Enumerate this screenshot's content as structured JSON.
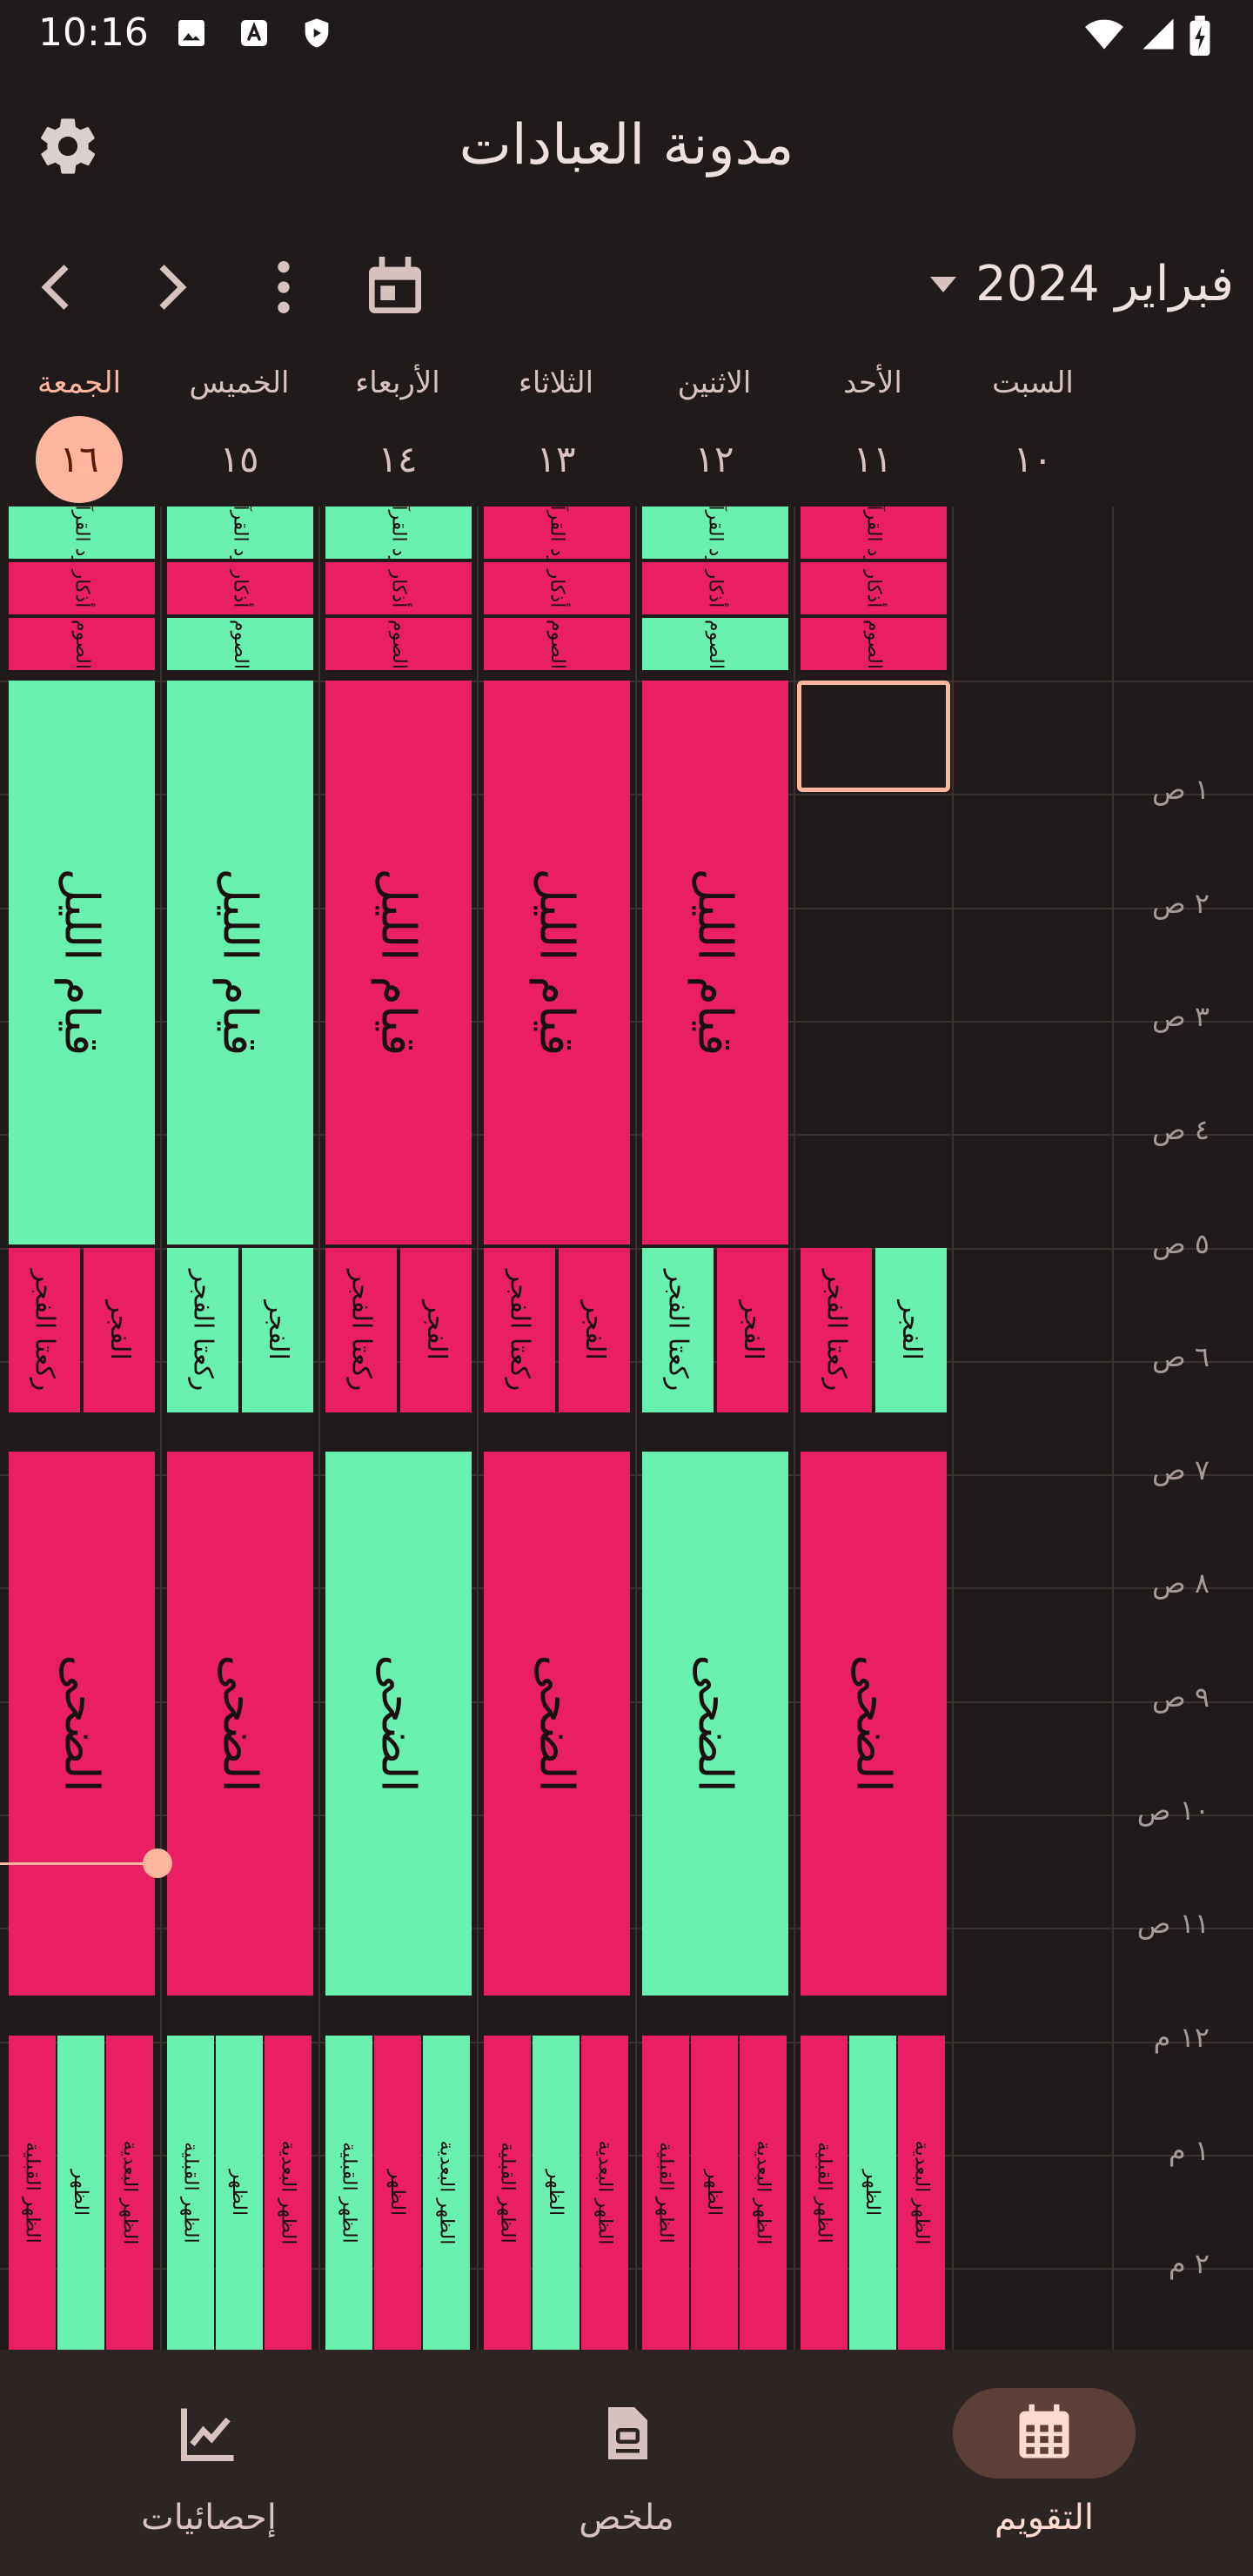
{
  "status_bar": {
    "time": "10:16"
  },
  "app": {
    "title": "مدونة العبادات"
  },
  "nav": {
    "month_label": "فبراير 2024"
  },
  "days": [
    {
      "name": "السبت",
      "date": "١٠",
      "today": false
    },
    {
      "name": "الأحد",
      "date": "١١",
      "today": false
    },
    {
      "name": "الاثنين",
      "date": "١٢",
      "today": false
    },
    {
      "name": "الثلاثاء",
      "date": "١٣",
      "today": false
    },
    {
      "name": "الأربعاء",
      "date": "١٤",
      "today": false
    },
    {
      "name": "الخميس",
      "date": "١٥",
      "today": false
    },
    {
      "name": "الجمعة",
      "date": "١٦",
      "today": true
    }
  ],
  "time_labels": [
    "١ ص",
    "٢ ص",
    "٣ ص",
    "٤ ص",
    "٥ ص",
    "٦ ص",
    "٧ ص",
    "٨ ص",
    "٩ ص",
    "١٠ ص",
    "١١ ص",
    "١٢ م",
    "١ م",
    "٢ م"
  ],
  "labels": {
    "quran": "ورد القرآن",
    "adhkar": "أذكار",
    "fasting": "الصوم",
    "qiyam": "قيام الليل",
    "fajr_sunnah": "ركعتا الفجر",
    "fajr": "الفجر",
    "duha": "الضحى",
    "dhuhr_before": "الظهر القبلية",
    "dhuhr": "الظهر",
    "dhuhr_after": "الظهر البعدية"
  },
  "colors": {
    "done": "#69f0ae",
    "missed": "#e91e63",
    "accent": "#ffb59f",
    "background": "#201a1a"
  },
  "status": {
    "الأحد": {
      "quran": "missed",
      "adhkar": "missed",
      "fasting": "missed",
      "fajr": "done",
      "fajr_sunnah": "missed",
      "duha": "missed",
      "dhuhr_before": "missed",
      "dhuhr": "done",
      "dhuhr_after": "missed"
    },
    "الاثنين": {
      "quran": "done",
      "adhkar": "missed",
      "fasting": "done",
      "qiyam": "missed",
      "fajr": "missed",
      "fajr_sunnah": "done",
      "duha": "done",
      "dhuhr_before": "missed",
      "dhuhr": "missed",
      "dhuhr_after": "missed"
    },
    "الثلاثاء": {
      "quran": "missed",
      "adhkar": "missed",
      "fasting": "missed",
      "qiyam": "missed",
      "fajr": "missed",
      "fajr_sunnah": "missed",
      "duha": "missed",
      "dhuhr_before": "missed",
      "dhuhr": "done",
      "dhuhr_after": "missed"
    },
    "الأربعاء": {
      "quran": "done",
      "adhkar": "missed",
      "fasting": "missed",
      "qiyam": "missed",
      "fajr": "missed",
      "fajr_sunnah": "missed",
      "duha": "done",
      "dhuhr_before": "done",
      "dhuhr": "missed",
      "dhuhr_after": "done"
    },
    "الخميس": {
      "quran": "done",
      "adhkar": "missed",
      "fasting": "done",
      "qiyam": "done",
      "fajr": "done",
      "fajr_sunnah": "done",
      "duha": "missed",
      "dhuhr_before": "done",
      "dhuhr": "done",
      "dhuhr_after": "missed"
    },
    "الجمعة": {
      "quran": "done",
      "adhkar": "missed",
      "fasting": "missed",
      "qiyam": "done",
      "fajr": "missed",
      "fajr_sunnah": "missed",
      "duha": "missed",
      "dhuhr_before": "missed",
      "dhuhr": "done",
      "dhuhr_after": "missed"
    }
  },
  "current_time_approx": "١٠:٢٥ ص",
  "bottom_nav": [
    {
      "label": "التقويم",
      "icon": "calendar-grid-icon",
      "active": true
    },
    {
      "label": "ملخص",
      "icon": "summary-document-icon",
      "active": false
    },
    {
      "label": "إحصائيات",
      "icon": "stats-chart-icon",
      "active": false
    }
  ]
}
